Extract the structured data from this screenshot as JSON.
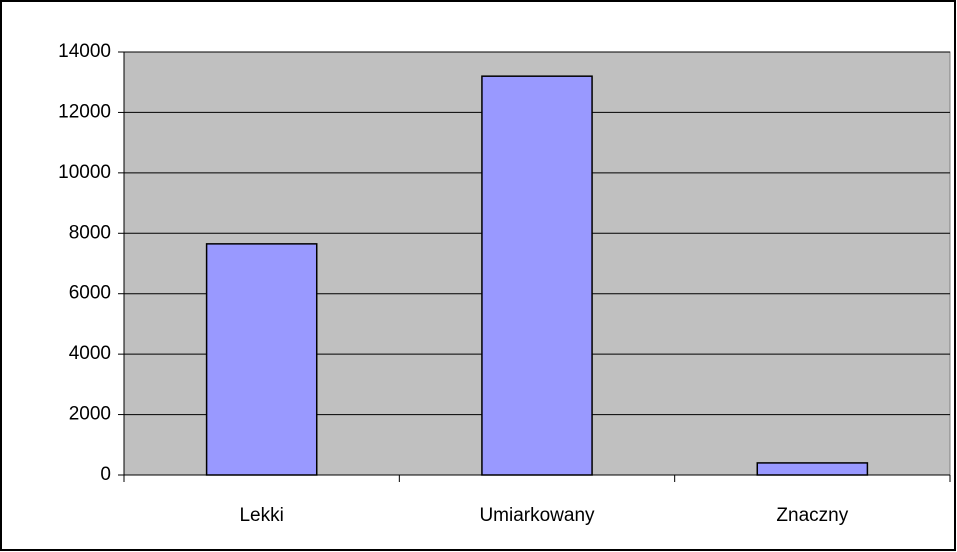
{
  "chart_data": {
    "type": "bar",
    "categories": [
      "Lekki",
      "Umiarkowany",
      "Znaczny"
    ],
    "values": [
      7650,
      13200,
      400
    ],
    "color": "#9999ff",
    "ylim": [
      0,
      14000
    ],
    "yticks": [
      0,
      2000,
      4000,
      6000,
      8000,
      10000,
      12000,
      14000
    ],
    "grid": true
  }
}
